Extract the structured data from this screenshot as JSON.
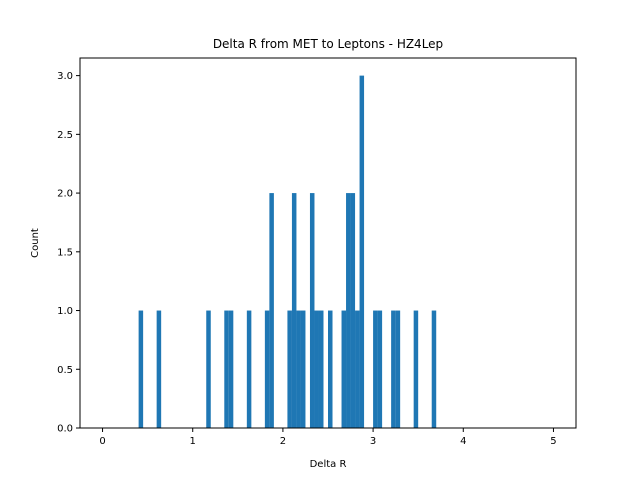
{
  "chart_data": {
    "type": "bar",
    "title": "Delta R from MET to Leptons - HZ4Lep",
    "xlabel": "Delta R",
    "ylabel": "Count",
    "xlim": [
      -0.25,
      5.25
    ],
    "ylim": [
      0,
      3.15
    ],
    "bin_width": 0.05,
    "bar_color": "#1f77b4",
    "xticks": [
      0,
      1,
      2,
      3,
      4,
      5
    ],
    "yticks": [
      0.0,
      0.5,
      1.0,
      1.5,
      2.0,
      2.5,
      3.0
    ],
    "xtick_labels": [
      "0",
      "1",
      "2",
      "3",
      "4",
      "5"
    ],
    "ytick_labels": [
      "0.0",
      "0.5",
      "1.0",
      "1.5",
      "2.0",
      "2.5",
      "3.0"
    ],
    "grid": false,
    "bins": [
      {
        "x": 0.4,
        "count": 1
      },
      {
        "x": 0.6,
        "count": 1
      },
      {
        "x": 1.15,
        "count": 1
      },
      {
        "x": 1.35,
        "count": 1
      },
      {
        "x": 1.4,
        "count": 1
      },
      {
        "x": 1.6,
        "count": 1
      },
      {
        "x": 1.8,
        "count": 1
      },
      {
        "x": 1.85,
        "count": 2
      },
      {
        "x": 2.05,
        "count": 1
      },
      {
        "x": 2.1,
        "count": 2
      },
      {
        "x": 2.15,
        "count": 1
      },
      {
        "x": 2.2,
        "count": 1
      },
      {
        "x": 2.3,
        "count": 2
      },
      {
        "x": 2.35,
        "count": 1
      },
      {
        "x": 2.4,
        "count": 1
      },
      {
        "x": 2.5,
        "count": 1
      },
      {
        "x": 2.65,
        "count": 1
      },
      {
        "x": 2.7,
        "count": 2
      },
      {
        "x": 2.75,
        "count": 2
      },
      {
        "x": 2.8,
        "count": 1
      },
      {
        "x": 2.85,
        "count": 3
      },
      {
        "x": 3.0,
        "count": 1
      },
      {
        "x": 3.05,
        "count": 1
      },
      {
        "x": 3.2,
        "count": 1
      },
      {
        "x": 3.25,
        "count": 1
      },
      {
        "x": 3.45,
        "count": 1
      },
      {
        "x": 3.65,
        "count": 1
      }
    ]
  }
}
